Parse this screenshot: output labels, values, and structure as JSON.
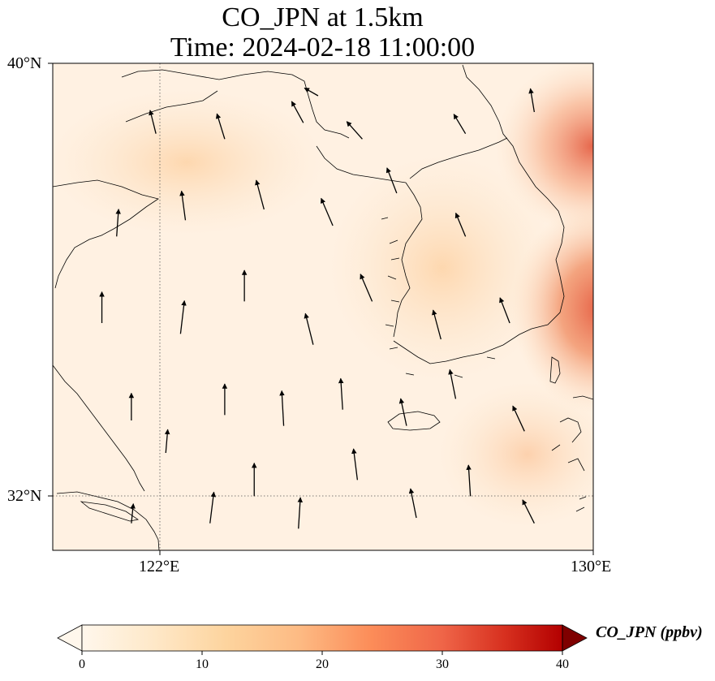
{
  "title": "CO_JPN at 1.5km",
  "subtitle": "Time: 2024-02-18 11:00:00",
  "chart_data": {
    "type": "heatmap",
    "variable": "CO_JPN",
    "level": "1.5km",
    "time": "2024-02-18 11:00:00",
    "lon_range": [
      119,
      130
    ],
    "lat_range": [
      31,
      40
    ],
    "gridlines": true,
    "x_ticks": [
      {
        "value": 122,
        "label": "122°E"
      },
      {
        "value": 130,
        "label": "130°E"
      }
    ],
    "y_ticks": [
      {
        "value": 40,
        "label": "40°N"
      },
      {
        "value": 32,
        "label": "32°N"
      }
    ],
    "colormap": "OrRd",
    "colorbar": {
      "label": "CO_JPN (ppbv)",
      "min": 0,
      "max": 40,
      "extend": "both",
      "ticks": [
        0,
        10,
        20,
        30,
        40
      ],
      "tick_labels": [
        "0",
        "10",
        "20",
        "30",
        "40"
      ]
    },
    "field_features": [
      {
        "name": "high-plume-east-korea",
        "lon": 130,
        "lat": 35.4,
        "value": 25
      },
      {
        "name": "high-plume-northeast",
        "lon": 130,
        "lat": 39.2,
        "value": 22
      },
      {
        "name": "moderate-yellow-sea-north",
        "lon": 122.5,
        "lat": 38.3,
        "value": 6
      },
      {
        "name": "moderate-korea-interior",
        "lon": 126.5,
        "lat": 36.0,
        "value": 5
      },
      {
        "name": "moderate-southeast",
        "lon": 128.8,
        "lat": 32.8,
        "value": 5
      }
    ],
    "wind_vectors_summary": "predominantly southerly to south-southeasterly flow over the Yellow Sea and Korean Peninsula",
    "wind_vectors": [
      {
        "lon": 120.6,
        "lat": 31.5,
        "u": 0.1,
        "v": 1.0
      },
      {
        "lon": 121.3,
        "lat": 32.8,
        "u": 0.1,
        "v": 1.2
      },
      {
        "lon": 122.2,
        "lat": 31.5,
        "u": 0.2,
        "v": 1.6
      },
      {
        "lon": 123.1,
        "lat": 32.0,
        "u": 0.0,
        "v": 1.7
      },
      {
        "lon": 124.0,
        "lat": 31.4,
        "u": 0.1,
        "v": 1.6
      },
      {
        "lon": 125.2,
        "lat": 32.3,
        "u": -0.2,
        "v": 1.6
      },
      {
        "lon": 126.4,
        "lat": 31.6,
        "u": -0.3,
        "v": 1.5
      },
      {
        "lon": 127.5,
        "lat": 32.0,
        "u": -0.1,
        "v": 1.6
      },
      {
        "lon": 128.8,
        "lat": 31.5,
        "u": -0.6,
        "v": 1.2
      },
      {
        "lon": 120.6,
        "lat": 33.4,
        "u": 0.0,
        "v": 1.4
      },
      {
        "lon": 122.5,
        "lat": 33.5,
        "u": 0.0,
        "v": 1.6
      },
      {
        "lon": 123.7,
        "lat": 33.3,
        "u": -0.1,
        "v": 1.8
      },
      {
        "lon": 124.9,
        "lat": 33.6,
        "u": -0.1,
        "v": 1.6
      },
      {
        "lon": 126.2,
        "lat": 33.3,
        "u": -0.3,
        "v": 1.4
      },
      {
        "lon": 127.2,
        "lat": 33.8,
        "u": -0.3,
        "v": 1.5
      },
      {
        "lon": 128.6,
        "lat": 33.2,
        "u": -0.6,
        "v": 1.3
      },
      {
        "lon": 120.0,
        "lat": 35.2,
        "u": 0.0,
        "v": 1.6
      },
      {
        "lon": 121.6,
        "lat": 35.0,
        "u": 0.2,
        "v": 1.7
      },
      {
        "lon": 122.9,
        "lat": 35.6,
        "u": 0.0,
        "v": 1.6
      },
      {
        "lon": 124.3,
        "lat": 34.8,
        "u": -0.4,
        "v": 1.6
      },
      {
        "lon": 125.5,
        "lat": 35.6,
        "u": -0.6,
        "v": 1.4
      },
      {
        "lon": 126.9,
        "lat": 34.9,
        "u": -0.4,
        "v": 1.5
      },
      {
        "lon": 128.3,
        "lat": 35.2,
        "u": -0.5,
        "v": 1.3
      },
      {
        "lon": 120.3,
        "lat": 36.8,
        "u": 0.1,
        "v": 1.4
      },
      {
        "lon": 121.7,
        "lat": 37.1,
        "u": -0.2,
        "v": 1.5
      },
      {
        "lon": 123.3,
        "lat": 37.3,
        "u": -0.4,
        "v": 1.5
      },
      {
        "lon": 124.7,
        "lat": 37.0,
        "u": -0.6,
        "v": 1.4
      },
      {
        "lon": 126.0,
        "lat": 37.6,
        "u": -0.5,
        "v": 1.3
      },
      {
        "lon": 127.4,
        "lat": 36.8,
        "u": -0.5,
        "v": 1.2
      },
      {
        "lon": 121.1,
        "lat": 38.7,
        "u": -0.3,
        "v": 1.2
      },
      {
        "lon": 122.5,
        "lat": 38.6,
        "u": -0.4,
        "v": 1.3
      },
      {
        "lon": 124.1,
        "lat": 38.9,
        "u": -0.6,
        "v": 1.1
      },
      {
        "lon": 125.3,
        "lat": 38.6,
        "u": -0.8,
        "v": 0.9
      },
      {
        "lon": 127.4,
        "lat": 38.7,
        "u": -0.6,
        "v": 1.0
      },
      {
        "lon": 128.8,
        "lat": 39.1,
        "u": -0.2,
        "v": 1.2
      },
      {
        "lon": 124.4,
        "lat": 39.4,
        "u": -0.7,
        "v": 0.4
      }
    ]
  }
}
